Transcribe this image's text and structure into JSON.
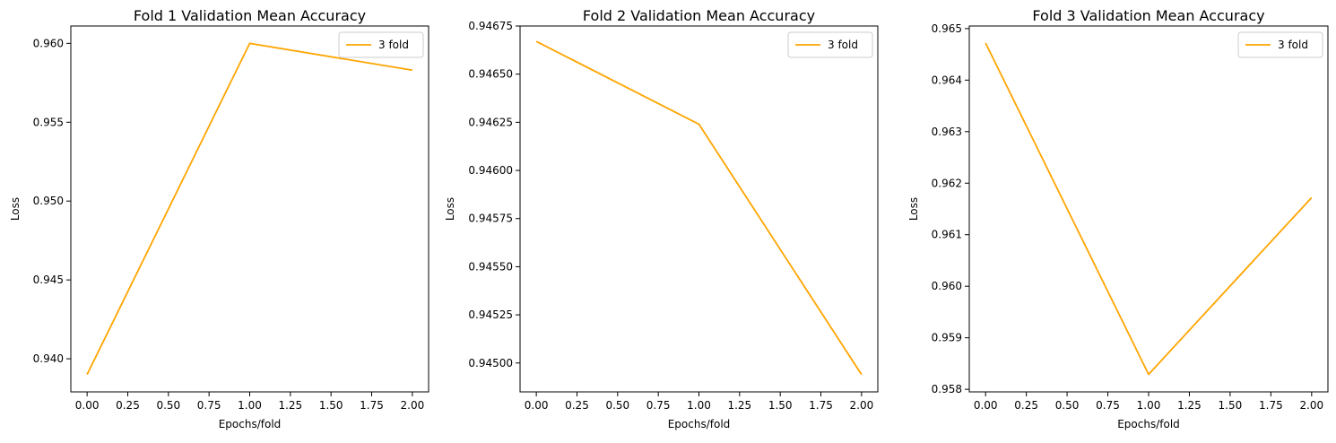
{
  "colors": {
    "line": "#FFA500",
    "axes": "#000000",
    "background": "#ffffff"
  },
  "chart_data": [
    {
      "type": "line",
      "title": "Fold 1 Validation Mean Accuracy",
      "xlabel": "Epochs/fold",
      "ylabel": "Loss",
      "xlim": [
        -0.1,
        2.1
      ],
      "ylim": [
        0.9379,
        0.9611
      ],
      "x_ticks": [
        "0.00",
        "0.25",
        "0.50",
        "0.75",
        "1.00",
        "1.25",
        "1.50",
        "1.75",
        "2.00"
      ],
      "y_ticks": [
        "0.940",
        "0.945",
        "0.950",
        "0.955",
        "0.960"
      ],
      "legend": {
        "position": "top-right"
      },
      "grid": false,
      "series": [
        {
          "name": "3 fold",
          "color": "#FFA500",
          "x": [
            0,
            1,
            2
          ],
          "y": [
            0.939,
            0.96,
            0.9583
          ]
        }
      ]
    },
    {
      "type": "line",
      "title": "Fold 2 Validation Mean Accuracy",
      "xlabel": "Epochs/fold",
      "ylabel": "Loss",
      "xlim": [
        -0.1,
        2.1
      ],
      "ylim": [
        0.94485,
        0.94675
      ],
      "x_ticks": [
        "0.00",
        "0.25",
        "0.50",
        "0.75",
        "1.00",
        "1.25",
        "1.50",
        "1.75",
        "2.00"
      ],
      "y_ticks": [
        "0.94500",
        "0.94525",
        "0.94550",
        "0.94575",
        "0.94600",
        "0.94625",
        "0.94650",
        "0.94675"
      ],
      "legend": {
        "position": "top-right"
      },
      "grid": false,
      "series": [
        {
          "name": "3 fold",
          "color": "#FFA500",
          "x": [
            0,
            1,
            2
          ],
          "y": [
            0.94667,
            0.94624,
            0.94494
          ]
        }
      ]
    },
    {
      "type": "line",
      "title": "Fold 3 Validation Mean Accuracy",
      "xlabel": "Epochs/fold",
      "ylabel": "Loss",
      "xlim": [
        -0.1,
        2.1
      ],
      "ylim": [
        0.95795,
        0.96505
      ],
      "x_ticks": [
        "0.00",
        "0.25",
        "0.50",
        "0.75",
        "1.00",
        "1.25",
        "1.50",
        "1.75",
        "2.00"
      ],
      "y_ticks": [
        "0.958",
        "0.959",
        "0.960",
        "0.961",
        "0.962",
        "0.963",
        "0.964",
        "0.965"
      ],
      "legend": {
        "position": "top-right"
      },
      "grid": false,
      "series": [
        {
          "name": "3 fold",
          "color": "#FFA500",
          "x": [
            0,
            1,
            2
          ],
          "y": [
            0.96472,
            0.95829,
            0.96172
          ]
        }
      ]
    }
  ]
}
